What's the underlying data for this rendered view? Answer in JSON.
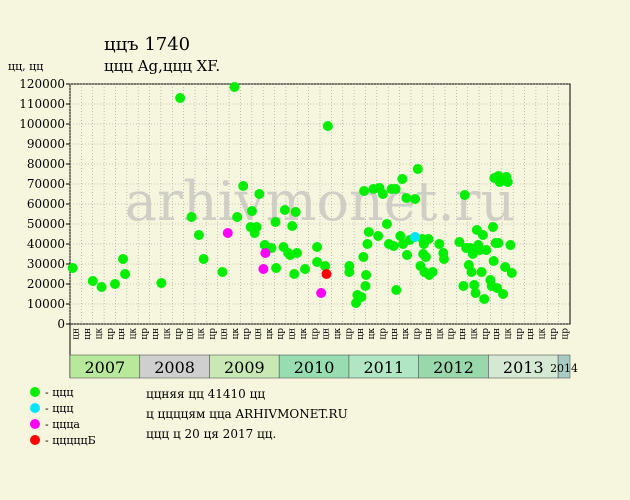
{
  "title": "ццъ 1740",
  "subtitle": "ццц Ag,ццц XF.",
  "y_unit": "цц, цц",
  "watermark": "arhivmonet.ru",
  "legend": [
    {
      "label": "- ццц",
      "color": "#00ee00"
    },
    {
      "label": "- ццц",
      "color": "#00e5ff"
    },
    {
      "label": "- ццца",
      "color": "#ff00ff"
    },
    {
      "label": "- цццццБ",
      "color": "#ff0000"
    }
  ],
  "info": {
    "line1": "ццняя цц 41410 цц",
    "line2": "ц ццццям цца ARHIVMONET.RU",
    "line3": "ццц ц 20 ця 2017 цц."
  },
  "chart_data": {
    "type": "scatter",
    "ylim": [
      0,
      120000
    ],
    "y_ticks": [
      0,
      10000,
      20000,
      30000,
      40000,
      50000,
      60000,
      70000,
      80000,
      90000,
      100000,
      110000,
      120000
    ],
    "x_range": [
      2007.0,
      2014.0
    ],
    "grid": true,
    "years": [
      {
        "label": "2007",
        "start": 2007.0,
        "end": 2008.0,
        "color": "#b7e89b"
      },
      {
        "label": "2008",
        "start": 2008.0,
        "end": 2009.0,
        "color": "#cfcfcf"
      },
      {
        "label": "2009",
        "start": 2009.0,
        "end": 2010.0,
        "color": "#c8e8b4"
      },
      {
        "label": "2010",
        "start": 2010.0,
        "end": 2011.0,
        "color": "#98ddb2"
      },
      {
        "label": "2011",
        "start": 2011.0,
        "end": 2012.0,
        "color": "#b0e6c4"
      },
      {
        "label": "2012",
        "start": 2012.0,
        "end": 2013.0,
        "color": "#98d8aa"
      },
      {
        "label": "2013",
        "start": 2013.0,
        "end": 2014.0,
        "color": "#d4e8d4"
      },
      {
        "label": "2014",
        "start": 2014.0,
        "end": 2014.17,
        "color": "#a8ccc4"
      }
    ],
    "x_ticks": [
      "цн",
      "цн",
      "цк",
      "цр",
      "цн",
      "цк",
      "цр",
      "цн",
      "цк",
      "цр",
      "цн",
      "цк",
      "цр",
      "цн",
      "цк",
      "цр",
      "цн",
      "цк",
      "цр",
      "цн",
      "цк",
      "цр",
      "цн",
      "цк",
      "цр",
      "цн",
      "цк",
      "цр",
      "цн",
      "цк",
      "цр",
      "цн",
      "цк",
      "цр",
      "цн",
      "цк",
      "цр",
      "цн",
      "цк",
      "цр",
      "цн",
      "цк",
      "цр",
      "цр"
    ],
    "series": [
      {
        "name": "ццц",
        "color": "#00ee00",
        "points": [
          [
            2007.04,
            28000
          ],
          [
            2007.34,
            21500
          ],
          [
            2007.47,
            18500
          ],
          [
            2007.67,
            20000
          ],
          [
            2007.79,
            32500
          ],
          [
            2007.82,
            25000
          ],
          [
            2008.36,
            20500
          ],
          [
            2008.64,
            113000
          ],
          [
            2008.81,
            53500
          ],
          [
            2008.92,
            44500
          ],
          [
            2008.99,
            32500
          ],
          [
            2009.27,
            26000
          ],
          [
            2009.45,
            118500
          ],
          [
            2009.49,
            53500
          ],
          [
            2009.58,
            69000
          ],
          [
            2009.69,
            48500
          ],
          [
            2009.71,
            56500
          ],
          [
            2009.75,
            45500
          ],
          [
            2009.78,
            48500
          ],
          [
            2009.82,
            65000
          ],
          [
            2009.9,
            39500
          ],
          [
            2010.0,
            38000
          ],
          [
            2010.06,
            51000
          ],
          [
            2010.07,
            28000
          ],
          [
            2010.18,
            38500
          ],
          [
            2010.2,
            57000
          ],
          [
            2010.25,
            35500
          ],
          [
            2010.28,
            34500
          ],
          [
            2010.31,
            49000
          ],
          [
            2010.34,
            25000
          ],
          [
            2010.36,
            56000
          ],
          [
            2010.38,
            35500
          ],
          [
            2010.5,
            27500
          ],
          [
            2010.68,
            38500
          ],
          [
            2010.68,
            31000
          ],
          [
            2010.8,
            29000
          ],
          [
            2010.84,
            99000
          ],
          [
            2011.16,
            29000
          ],
          [
            2011.16,
            26000
          ],
          [
            2011.26,
            10500
          ],
          [
            2011.28,
            14500
          ],
          [
            2011.34,
            13500
          ],
          [
            2011.37,
            33500
          ],
          [
            2011.38,
            66500
          ],
          [
            2011.4,
            19000
          ],
          [
            2011.41,
            24500
          ],
          [
            2011.43,
            40000
          ],
          [
            2011.45,
            46000
          ],
          [
            2011.52,
            67500
          ],
          [
            2011.59,
            44000
          ],
          [
            2011.61,
            68000
          ],
          [
            2011.66,
            65000
          ],
          [
            2011.72,
            50000
          ],
          [
            2011.75,
            40000
          ],
          [
            2011.79,
            67500
          ],
          [
            2011.82,
            39000
          ],
          [
            2011.85,
            67500
          ],
          [
            2011.86,
            17000
          ],
          [
            2011.92,
            44000
          ],
          [
            2011.95,
            72500
          ],
          [
            2011.96,
            40000
          ],
          [
            2012.01,
            63000
          ],
          [
            2012.02,
            34500
          ],
          [
            2012.06,
            42000
          ],
          [
            2012.14,
            62500
          ],
          [
            2012.18,
            77500
          ],
          [
            2012.22,
            29000
          ],
          [
            2012.25,
            42500
          ],
          [
            2012.26,
            35000
          ],
          [
            2012.27,
            40000
          ],
          [
            2012.28,
            26000
          ],
          [
            2012.3,
            33500
          ],
          [
            2012.34,
            42500
          ],
          [
            2012.35,
            24500
          ],
          [
            2012.4,
            26000
          ],
          [
            2012.5,
            40000
          ],
          [
            2012.56,
            35500
          ],
          [
            2012.57,
            32500
          ],
          [
            2012.8,
            41000
          ],
          [
            2012.86,
            19000
          ],
          [
            2012.88,
            64500
          ],
          [
            2012.9,
            38000
          ],
          [
            2012.94,
            29500
          ],
          [
            2012.96,
            38000
          ],
          [
            2012.98,
            26000
          ],
          [
            2013.0,
            35000
          ],
          [
            2013.02,
            19500
          ],
          [
            2013.04,
            15500
          ],
          [
            2013.06,
            47000
          ],
          [
            2013.08,
            39500
          ],
          [
            2013.1,
            37000
          ],
          [
            2013.13,
            26000
          ],
          [
            2013.15,
            44500
          ],
          [
            2013.17,
            12500
          ],
          [
            2013.2,
            37000
          ],
          [
            2013.26,
            22000
          ],
          [
            2013.28,
            19000
          ],
          [
            2013.3,
            48500
          ],
          [
            2013.31,
            31500
          ],
          [
            2013.32,
            73000
          ],
          [
            2013.34,
            40500
          ],
          [
            2013.36,
            18000
          ],
          [
            2013.38,
            74000
          ],
          [
            2013.38,
            40500
          ],
          [
            2013.4,
            71000
          ],
          [
            2013.45,
            15000
          ],
          [
            2013.48,
            28500
          ],
          [
            2013.5,
            73500
          ],
          [
            2013.52,
            71000
          ],
          [
            2013.56,
            39500
          ],
          [
            2013.58,
            25500
          ]
        ]
      },
      {
        "name": "ццц",
        "color": "#00e5ff",
        "points": [
          [
            2012.14,
            43500
          ]
        ]
      },
      {
        "name": "ццца",
        "color": "#ff00ff",
        "points": [
          [
            2009.35,
            45500
          ],
          [
            2009.88,
            27500
          ],
          [
            2009.91,
            35500
          ],
          [
            2010.74,
            15500
          ]
        ]
      },
      {
        "name": "цццццБ",
        "color": "#ff0000",
        "points": [
          [
            2010.82,
            25000
          ]
        ]
      }
    ]
  }
}
